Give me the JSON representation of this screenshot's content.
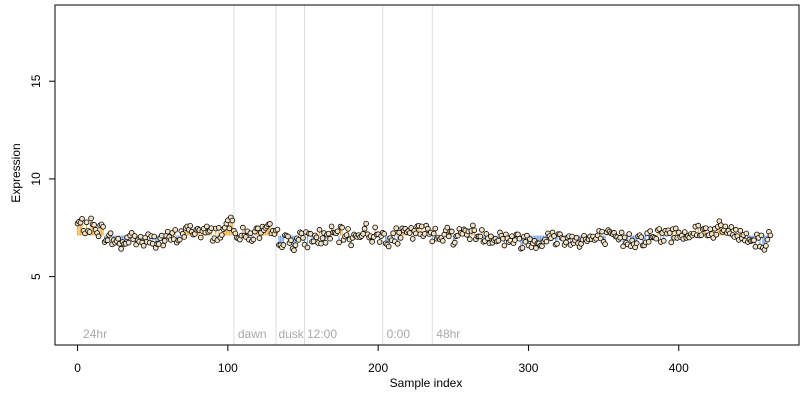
{
  "chart_data": {
    "type": "scatter",
    "title": "",
    "xlabel": "Sample index",
    "ylabel": "Expression",
    "xlim": [
      -15,
      480
    ],
    "ylim": [
      1.5,
      18.9
    ],
    "xticks": [
      0,
      100,
      200,
      300,
      400
    ],
    "yticks": [
      5,
      10,
      15
    ],
    "baseline": 7.1,
    "grid": false,
    "colors": {
      "above": "#f0b24a",
      "below": "#7fa6e0",
      "point_fill": "#f3e3c4",
      "point_stroke": "#000000",
      "divider": "#dddddd",
      "annotation": "#a9a9a9",
      "axis": "#000000"
    },
    "dividers": [
      104,
      132,
      151,
      203,
      236
    ],
    "annotations": [
      {
        "x": 3,
        "label": "24hr"
      },
      {
        "x": 106,
        "label": "dawn"
      },
      {
        "x": 133,
        "label": "dusk"
      },
      {
        "x": 152,
        "label": "12:00"
      },
      {
        "x": 205,
        "label": "0:00"
      },
      {
        "x": 238,
        "label": "48hr"
      }
    ],
    "n_points": 462,
    "values_anchors": [
      [
        0,
        7.7
      ],
      [
        5,
        7.5
      ],
      [
        10,
        7.6
      ],
      [
        15,
        7.4
      ],
      [
        20,
        7.0
      ],
      [
        25,
        6.8
      ],
      [
        30,
        6.7
      ],
      [
        35,
        7.0
      ],
      [
        40,
        6.9
      ],
      [
        45,
        6.8
      ],
      [
        50,
        6.9
      ],
      [
        55,
        6.8
      ],
      [
        60,
        6.9
      ],
      [
        65,
        7.0
      ],
      [
        70,
        7.2
      ],
      [
        75,
        7.4
      ],
      [
        80,
        7.3
      ],
      [
        85,
        7.3
      ],
      [
        90,
        7.2
      ],
      [
        95,
        7.3
      ],
      [
        100,
        7.6
      ],
      [
        102,
        7.9
      ],
      [
        104,
        7.8
      ],
      [
        106,
        7.2
      ],
      [
        110,
        7.1
      ],
      [
        120,
        7.2
      ],
      [
        130,
        7.3
      ],
      [
        135,
        6.9
      ],
      [
        140,
        6.8
      ],
      [
        145,
        6.8
      ],
      [
        150,
        6.9
      ],
      [
        160,
        7.0
      ],
      [
        170,
        7.1
      ],
      [
        180,
        7.1
      ],
      [
        185,
        7.0
      ],
      [
        190,
        7.4
      ],
      [
        195,
        7.2
      ],
      [
        200,
        7.1
      ],
      [
        210,
        7.0
      ],
      [
        220,
        7.2
      ],
      [
        230,
        7.3
      ],
      [
        240,
        7.2
      ],
      [
        250,
        7.1
      ],
      [
        260,
        7.3
      ],
      [
        270,
        7.1
      ],
      [
        280,
        7.0
      ],
      [
        290,
        6.9
      ],
      [
        300,
        6.8
      ],
      [
        310,
        6.9
      ],
      [
        320,
        7.0
      ],
      [
        330,
        6.9
      ],
      [
        340,
        6.9
      ],
      [
        350,
        7.0
      ],
      [
        360,
        6.9
      ],
      [
        370,
        6.9
      ],
      [
        380,
        7.0
      ],
      [
        390,
        7.1
      ],
      [
        400,
        7.2
      ],
      [
        410,
        7.3
      ],
      [
        420,
        7.3
      ],
      [
        430,
        7.4
      ],
      [
        440,
        7.1
      ],
      [
        450,
        6.9
      ],
      [
        455,
        6.8
      ],
      [
        458,
        6.6
      ],
      [
        460,
        7.2
      ],
      [
        461,
        7.4
      ]
    ]
  }
}
